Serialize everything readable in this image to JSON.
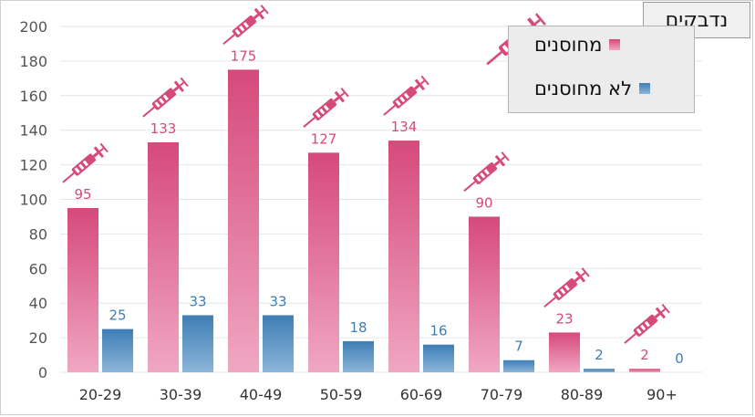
{
  "title": "נדבקים",
  "legend": {
    "vaccinated": "מחוסנים",
    "unvaccinated": "לא מחוסנים"
  },
  "colors": {
    "vaccinated": "#d6497b",
    "vaccinated_light": "#f0a7c2",
    "unvaccinated": "#3d7eb6",
    "unvaccinated_light": "#8db5d8",
    "grid": "#e6e6e6"
  },
  "icons": {
    "bar_marker": "syringe-icon"
  },
  "chart_data": {
    "type": "bar",
    "title": "נדבקים",
    "categories": [
      "20-29",
      "30-39",
      "40-49",
      "50-59",
      "60-69",
      "70-79",
      "80-89",
      "90+"
    ],
    "series": [
      {
        "name": "מחוסנים",
        "values": [
          95,
          133,
          175,
          127,
          134,
          90,
          23,
          2
        ]
      },
      {
        "name": "לא מחוסנים",
        "values": [
          25,
          33,
          33,
          18,
          16,
          7,
          2,
          0
        ]
      }
    ],
    "ylim": [
      0,
      200
    ],
    "yticks": [
      0,
      20,
      40,
      60,
      80,
      100,
      120,
      140,
      160,
      180,
      200
    ],
    "grid": true,
    "legend_position": "top-right",
    "xlabel": "",
    "ylabel": ""
  }
}
